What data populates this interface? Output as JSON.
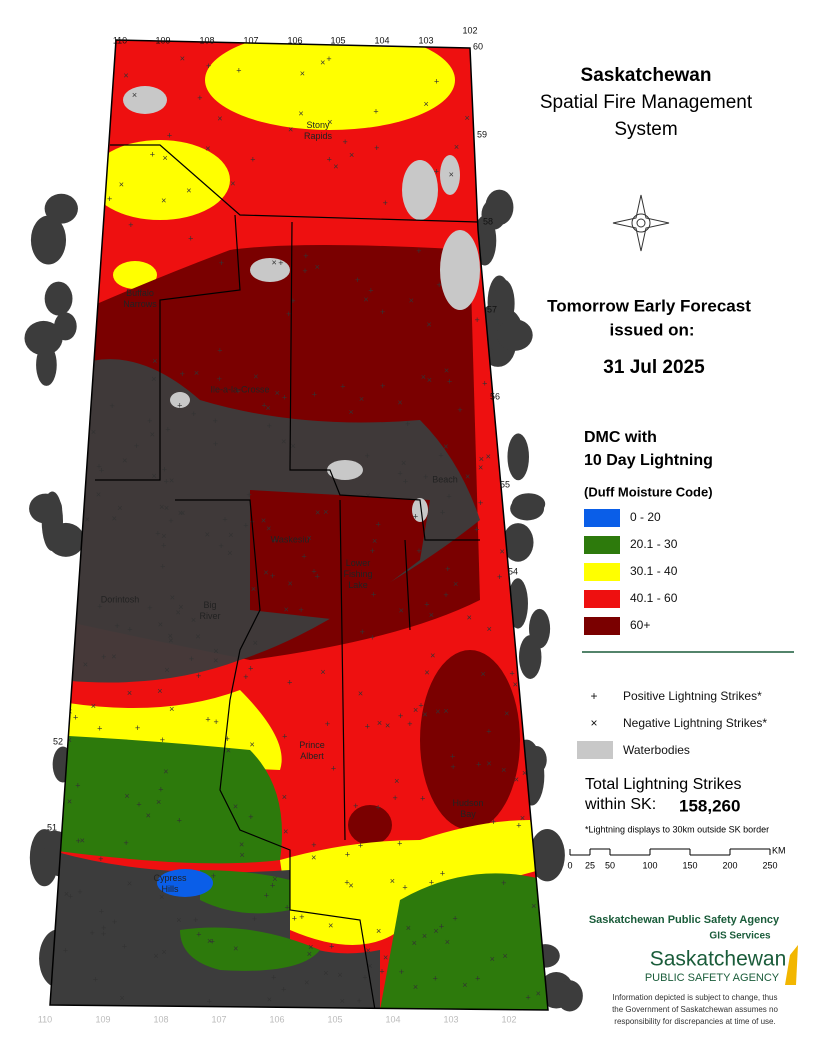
{
  "header": {
    "title": "Saskatchewan",
    "subtitle": [
      "Spatial Fire Management",
      "System"
    ]
  },
  "forecast": {
    "lines": [
      "Tomorrow Early Forecast",
      "issued on:"
    ],
    "date": "31 Jul 2025"
  },
  "legend": {
    "title": [
      "DMC with",
      "10 Day Lightning"
    ],
    "subtitle": "(Duff Moisture Code)",
    "classes": [
      {
        "label": "0 - 20",
        "color": "#0a5ee8"
      },
      {
        "label": "20.1 - 30",
        "color": "#2d7a0c"
      },
      {
        "label": "30.1 - 40",
        "color": "#ffff00"
      },
      {
        "label": "40.1 - 60",
        "color": "#ee1010"
      },
      {
        "label": "60+",
        "color": "#7a0000"
      }
    ],
    "symbols": [
      "Positive Lightning Strikes*",
      "Negative Lightning Strikes*",
      "Waterbodies"
    ]
  },
  "totals": {
    "label": [
      "Total Lightning Strikes",
      "within SK:"
    ],
    "value": "158,260",
    "note": "*Lightning displays to 30km outside SK border"
  },
  "scale": {
    "ticks": [
      0,
      25,
      50,
      100,
      150,
      200,
      250
    ],
    "unit": "KM"
  },
  "agency": {
    "name": "Saskatchewan Public Safety Agency",
    "unit": "GIS  Services",
    "logo": [
      "Saskatchewan",
      "PUBLIC SAFETY AGENCY"
    ]
  },
  "disclaimer": [
    "Information depicted is subject to change, thus",
    "the Government of Saskatchewan assumes no",
    "responsibility for discrepancies at time of use."
  ],
  "map": {
    "longitudes": [
      110,
      109,
      108,
      107,
      106,
      105,
      104,
      103,
      102
    ],
    "latitudes": [
      60,
      59,
      58,
      57,
      56,
      55,
      54,
      52,
      51
    ],
    "places": [
      "Stony Rapids",
      "Buffalo Narrows",
      "Ile-a-la-Crosse",
      "Beach",
      "Waskesiu",
      "Lower Fishing Lake",
      "Dorintosh",
      "Big River",
      "Prince Albert",
      "Hudson Bay",
      "Cypress Hills"
    ]
  }
}
